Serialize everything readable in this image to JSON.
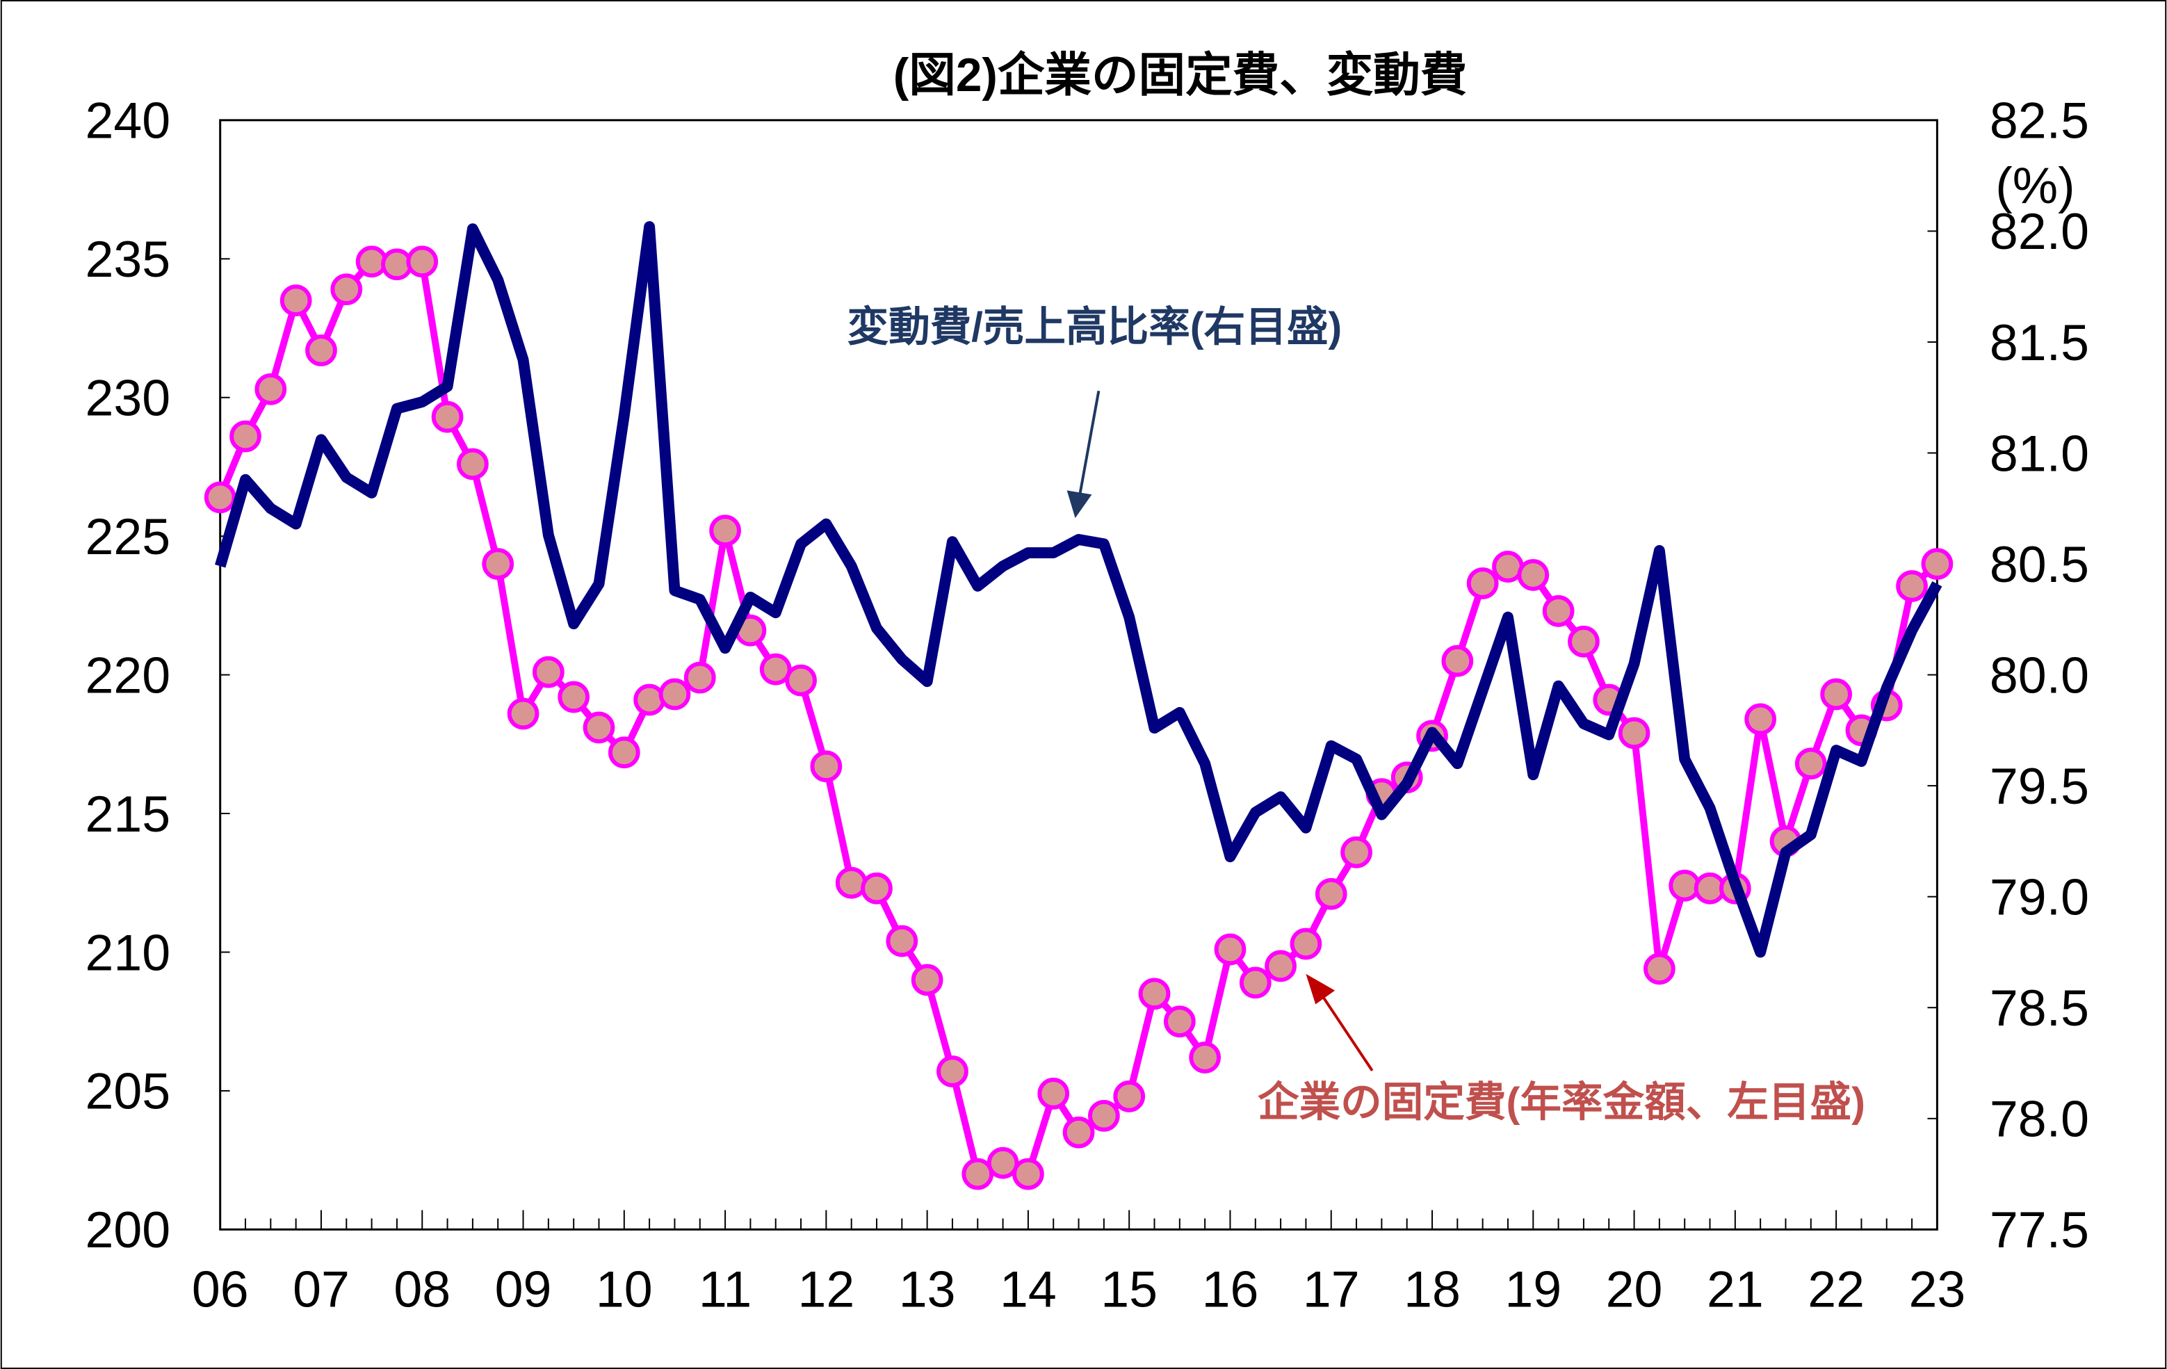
{
  "chart_data": {
    "type": "line",
    "title": "(図2)企業の固定費、変動費",
    "x_tick_labels": [
      "06",
      "07",
      "08",
      "09",
      "10",
      "11",
      "12",
      "13",
      "14",
      "15",
      "16",
      "17",
      "18",
      "19",
      "20",
      "21",
      "22",
      "23"
    ],
    "x_start": "2006Q1",
    "x_frequency": "quarterly",
    "left_axis": {
      "ylim": [
        200,
        240
      ],
      "ticks": [
        "200",
        "205",
        "210",
        "215",
        "220",
        "225",
        "230",
        "235",
        "240"
      ]
    },
    "right_axis": {
      "ylim": [
        77.5,
        82.5
      ],
      "unit_label": "(%)",
      "ticks": [
        "77.5",
        "78.0",
        "78.5",
        "79.0",
        "79.5",
        "80.0",
        "80.5",
        "81.0",
        "81.5",
        "82.0",
        "82.5"
      ]
    },
    "grid": false,
    "series": [
      {
        "name": "企業の固定費(年率金額、左目盛)",
        "axis": "left",
        "color": "#FF00FF",
        "marker_color": "#D99594",
        "values": [
          226.4,
          228.6,
          230.3,
          233.5,
          231.7,
          233.9,
          234.9,
          234.8,
          234.9,
          229.3,
          227.6,
          224.0,
          218.6,
          220.1,
          219.2,
          218.1,
          217.2,
          219.1,
          219.3,
          219.9,
          225.2,
          221.6,
          220.2,
          219.8,
          216.7,
          212.5,
          212.3,
          210.4,
          209.0,
          205.7,
          202.0,
          202.4,
          202.0,
          204.9,
          203.5,
          204.1,
          204.8,
          208.5,
          207.5,
          206.2,
          210.1,
          208.9,
          209.5,
          210.3,
          212.1,
          213.6,
          215.7,
          216.3,
          217.8,
          220.5,
          223.3,
          223.9,
          223.6,
          222.3,
          221.2,
          219.1,
          217.9,
          209.4,
          212.4,
          212.3,
          212.3,
          218.4,
          214.0,
          216.8,
          219.3,
          218.0,
          218.9,
          223.2,
          224.0
        ]
      },
      {
        "name": "変動費/売上高比率(右目盛)",
        "axis": "right",
        "color": "#000080",
        "values": [
          80.49,
          80.88,
          80.75,
          80.68,
          81.06,
          80.89,
          80.82,
          81.2,
          81.23,
          81.3,
          82.01,
          81.78,
          81.42,
          80.63,
          80.23,
          80.41,
          81.17,
          82.02,
          80.38,
          80.34,
          80.12,
          80.35,
          80.28,
          80.59,
          80.68,
          80.49,
          80.21,
          80.07,
          79.97,
          80.6,
          80.4,
          80.49,
          80.55,
          80.55,
          80.61,
          80.59,
          80.26,
          79.76,
          79.83,
          79.6,
          79.18,
          79.38,
          79.45,
          79.31,
          79.68,
          79.62,
          79.37,
          79.51,
          79.74,
          79.6,
          79.93,
          80.26,
          79.55,
          79.95,
          79.78,
          79.73,
          80.05,
          80.56,
          79.62,
          79.4,
          79.06,
          78.75,
          79.2,
          79.28,
          79.66,
          79.61,
          79.94,
          80.2,
          80.41
        ]
      }
    ],
    "annotations": {
      "variable_label": "変動費/売上高比率(右目盛)",
      "variable_color": "#1F3864",
      "fixed_label": "企業の固定費(年率金額、左目盛)",
      "fixed_color": "#C0504D"
    }
  }
}
